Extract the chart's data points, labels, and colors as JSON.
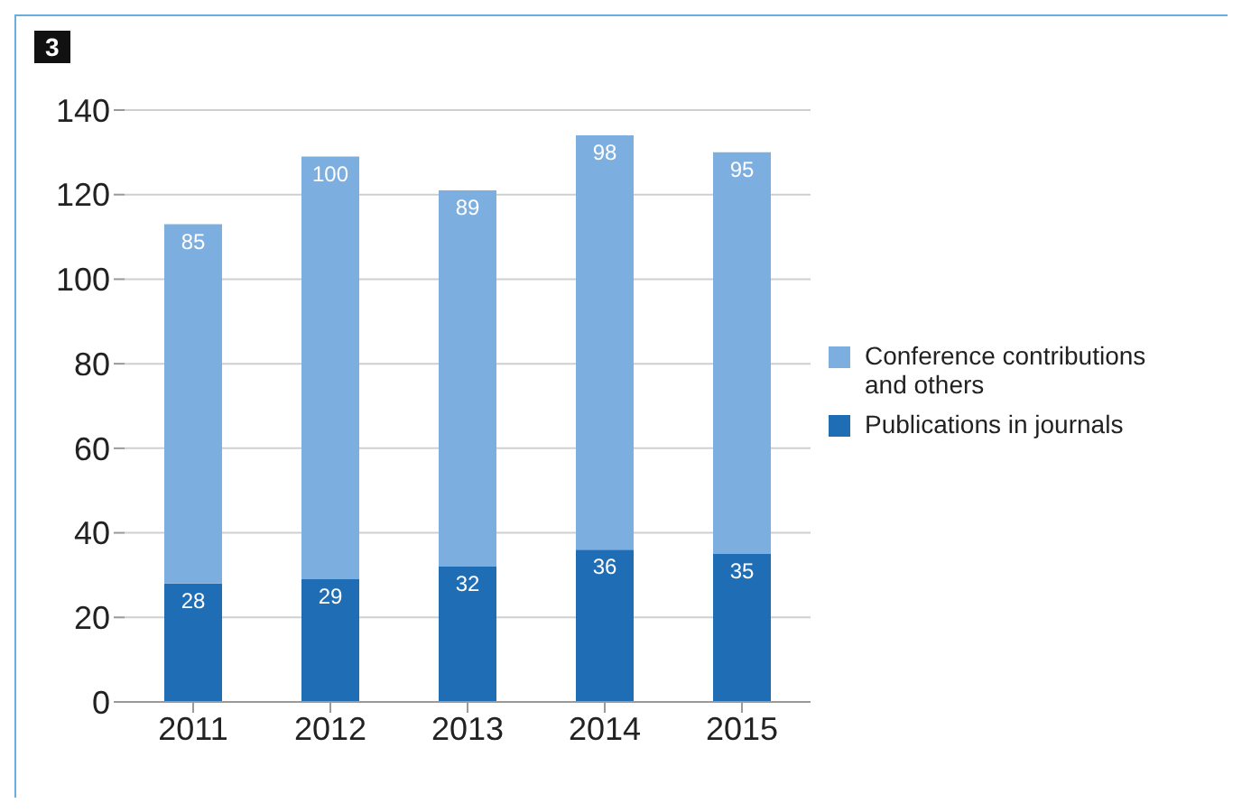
{
  "chart_data": {
    "type": "bar",
    "title": "3",
    "categories": [
      "2011",
      "2012",
      "2013",
      "2014",
      "2015"
    ],
    "stacked": true,
    "series": [
      {
        "name": "Publications in journals",
        "color": "#1f6db5",
        "values": [
          28,
          29,
          32,
          36,
          35
        ]
      },
      {
        "name": "Conference contributions and others",
        "color": "#7daee0",
        "values": [
          85,
          100,
          89,
          98,
          95
        ]
      }
    ],
    "ylim": [
      0,
      140
    ],
    "yticks": [
      0,
      20,
      40,
      60,
      80,
      100,
      120,
      140
    ],
    "grid": "y",
    "legend": "right",
    "data_labels": true
  }
}
